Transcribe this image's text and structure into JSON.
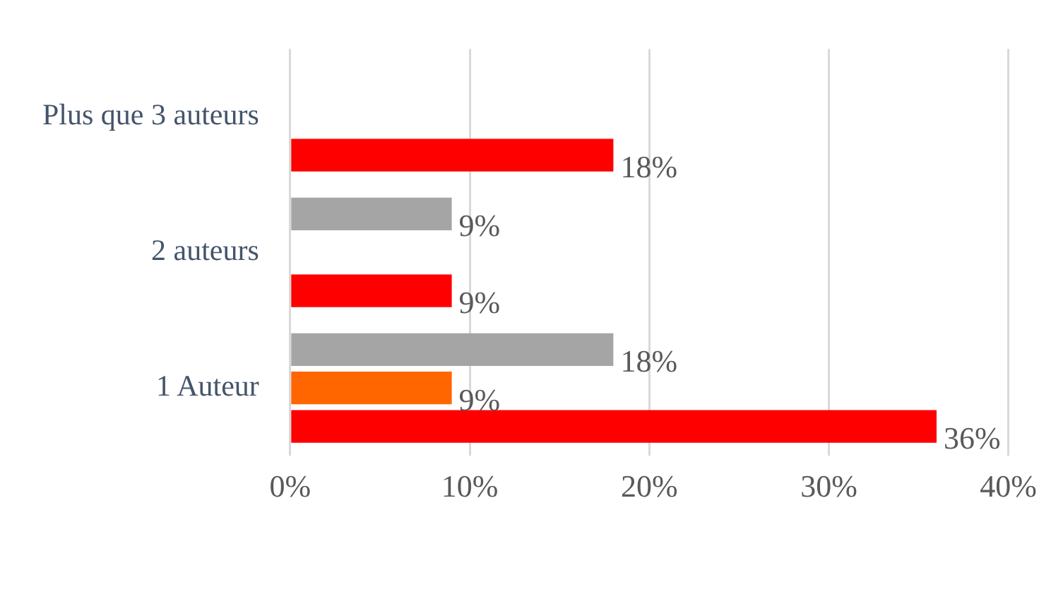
{
  "chart_data": {
    "type": "bar",
    "orientation": "horizontal",
    "categories": [
      "Plus que 3 auteurs",
      "2 auteurs",
      "1 Auteur"
    ],
    "series": [
      {
        "color": "#a5a5a5",
        "values": [
          null,
          9,
          18
        ],
        "value_labels": [
          null,
          "9%",
          "18%"
        ]
      },
      {
        "color": "#ff6600",
        "values": [
          null,
          null,
          9
        ],
        "value_labels": [
          null,
          null,
          "9%"
        ]
      },
      {
        "color": "#ff0000",
        "values": [
          18,
          9,
          36
        ],
        "value_labels": [
          "18%",
          "9%",
          "36%"
        ]
      }
    ],
    "xlim": [
      0,
      40
    ],
    "xticks": [
      {
        "value": 0,
        "label": "0%"
      },
      {
        "value": 10,
        "label": "10%"
      },
      {
        "value": 20,
        "label": "20%"
      },
      {
        "value": 30,
        "label": "30%"
      },
      {
        "value": 40,
        "label": "40%"
      }
    ],
    "grid": "x",
    "legend": false
  }
}
